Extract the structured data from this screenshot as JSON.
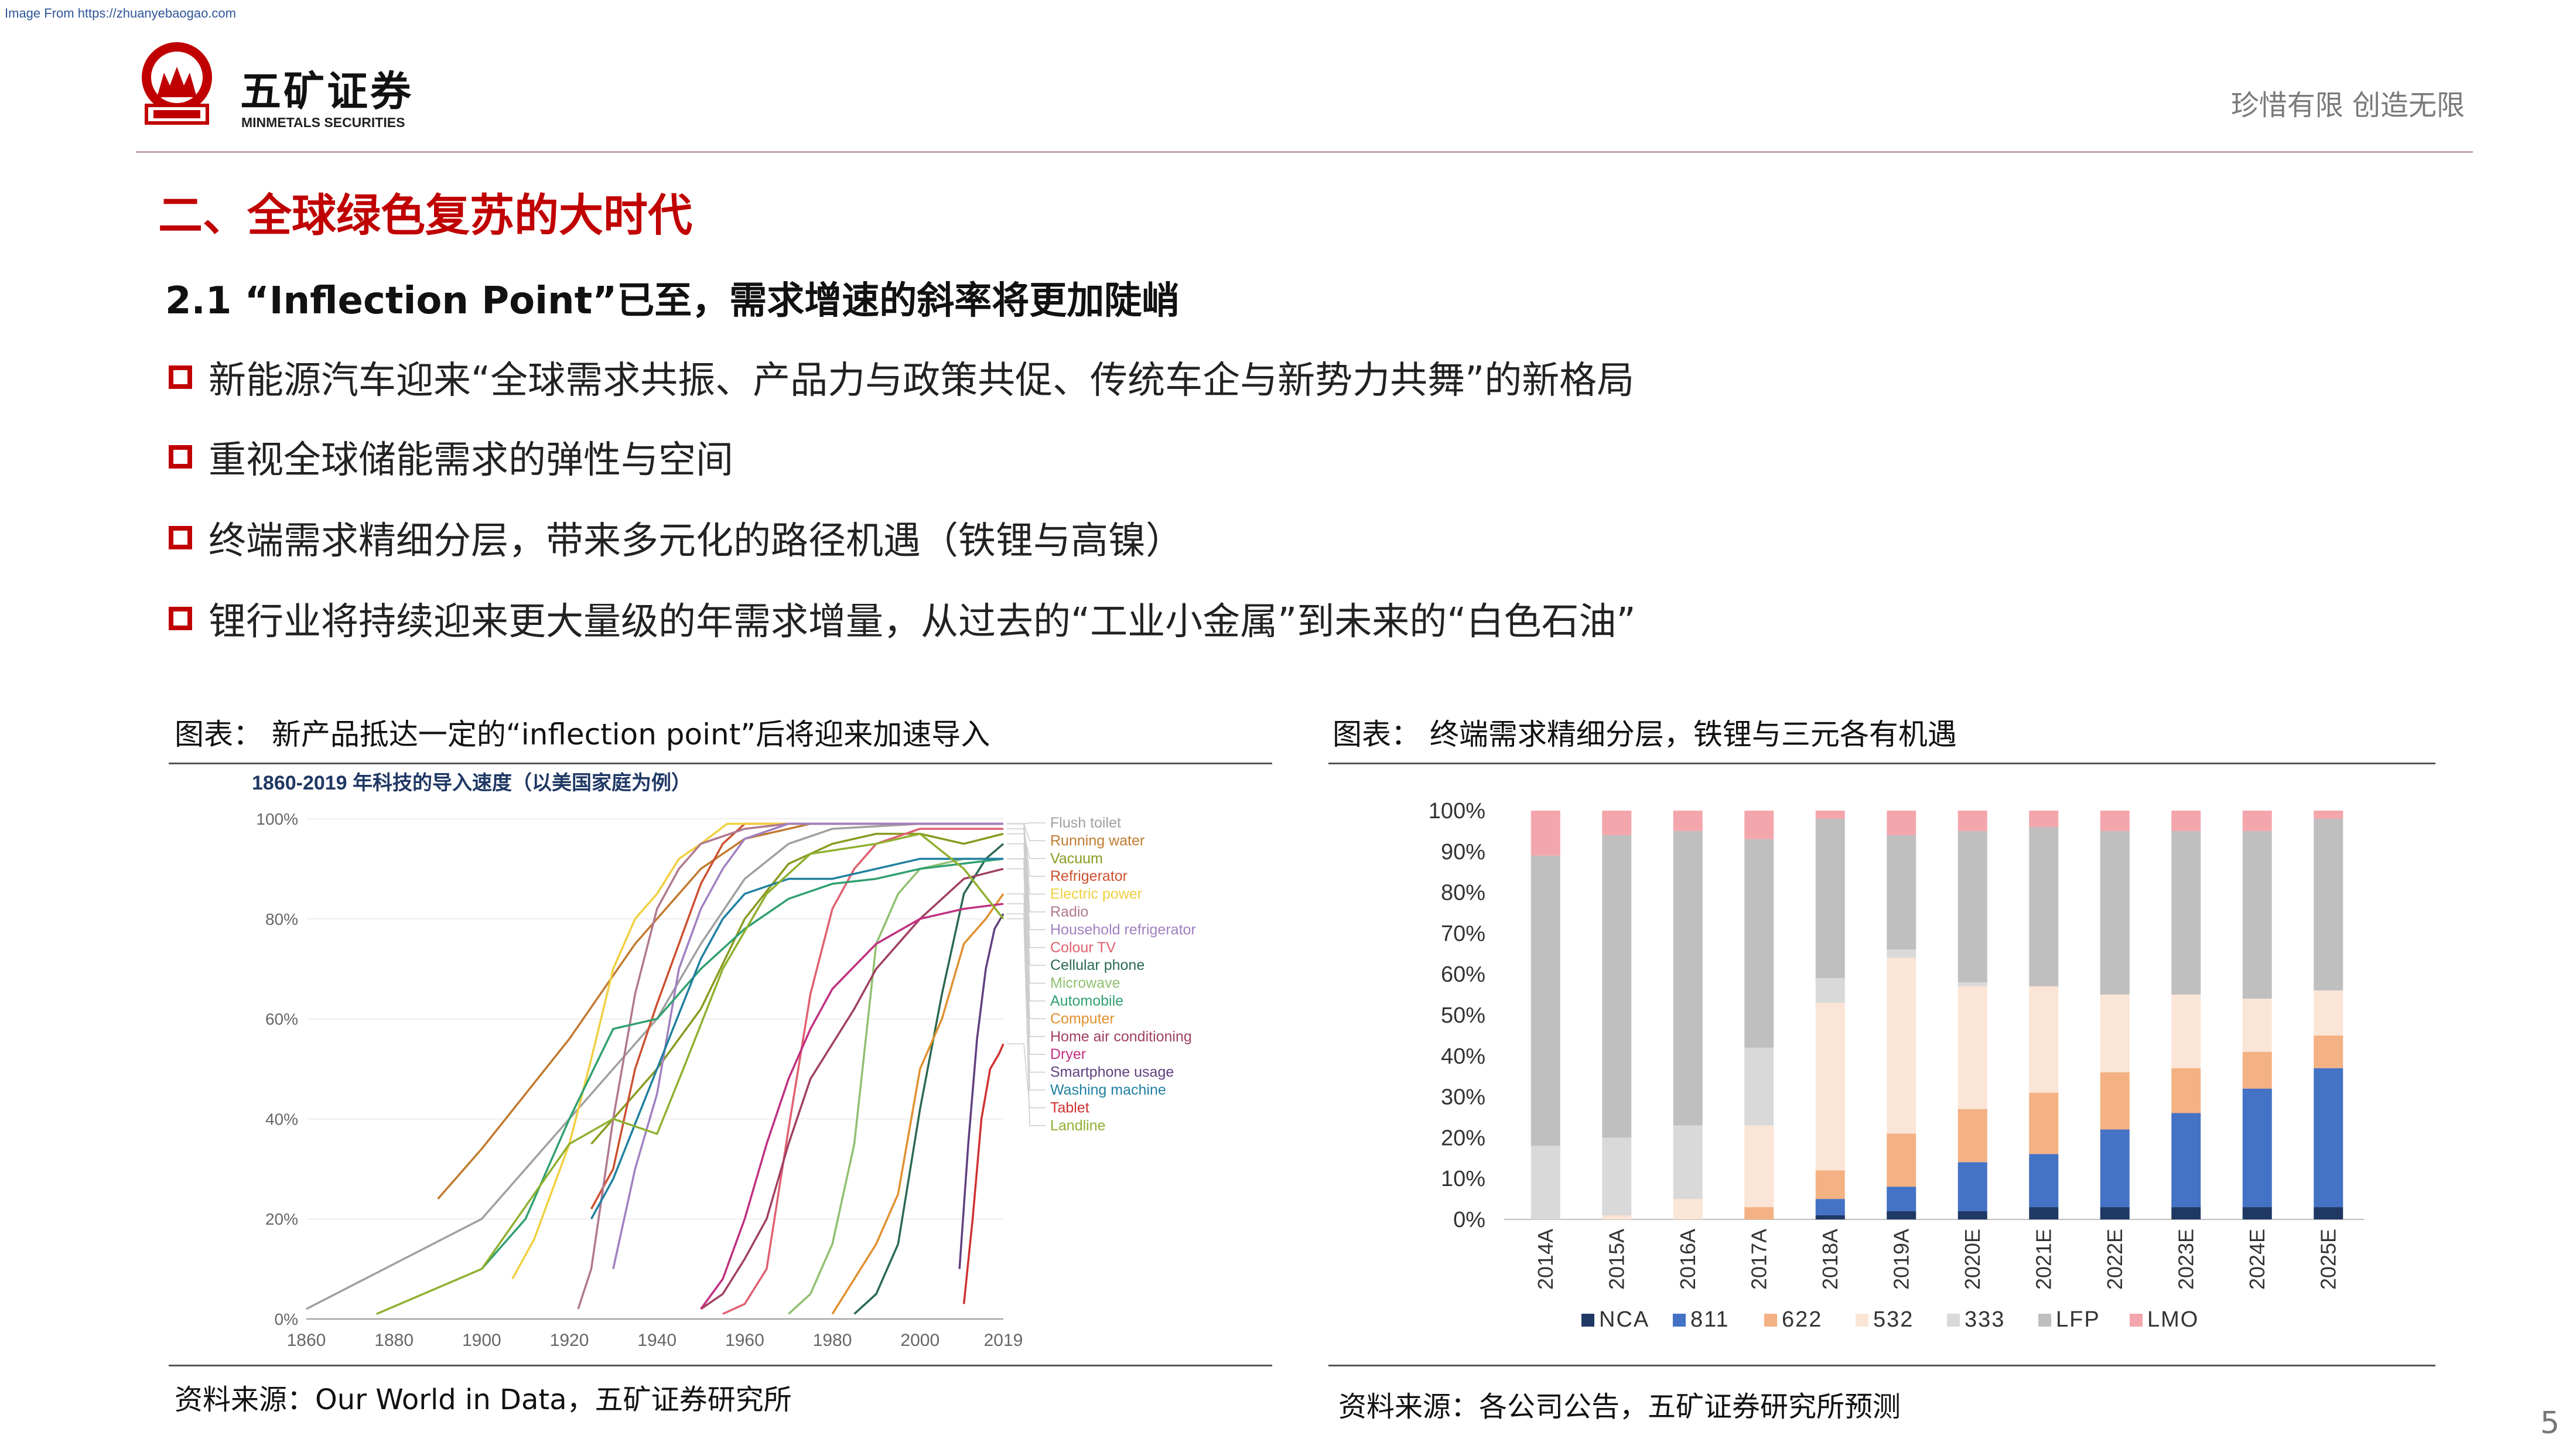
{
  "source_note": "Image From https://zhuanyebaogao.com",
  "logo": {
    "brand_cn": "五矿证券",
    "brand_en": "MINMETALS SECURITIES",
    "emblem_text": "MINMETALS"
  },
  "slogan": "珍惜有限  创造无限",
  "section_title": "二、全球绿色复苏的大时代",
  "sub_title": "2.1 “Inflection Point”已至，需求增速的斜率将更加陡峭",
  "bullets": [
    "新能源汽车迎来“全球需求共振、产品力与政策共促、传统车企与新势力共舞”的新格局",
    "重视全球储能需求的弹性与空间",
    "终端需求精细分层，带来多元化的路径机遇（铁锂与高镍）",
    "锂行业将持续迎来更大量级的年需求增量，从过去的“工业小金属”到未来的“白色石油”"
  ],
  "left_figure": {
    "caption": "图表： 新产品抵达一定的“inflection point”后将迎来加速导入",
    "source": "资料来源：Our World in Data，五矿证券研究所"
  },
  "right_figure": {
    "caption": "图表： 终端需求精细分层，铁锂与三元各有机遇",
    "source": "资料来源：各公司公告，五矿证券研究所预测"
  },
  "page_number": "5",
  "chart_data": [
    {
      "type": "line",
      "title": "1860-2019 年科技的导入速度（以美国家庭为例）",
      "xlabel": "",
      "ylabel": "",
      "xlim": [
        1860,
        2019
      ],
      "ylim": [
        0,
        100
      ],
      "x_ticks": [
        "1860",
        "1880",
        "1900",
        "1920",
        "1940",
        "1960",
        "1980",
        "2000",
        "2019"
      ],
      "y_ticks": [
        "0%",
        "20%",
        "40%",
        "60%",
        "80%",
        "100%"
      ],
      "legend_position": "right",
      "series": [
        {
          "name": "Flush toilet",
          "color": "#a0a0a0",
          "points": [
            [
              1860,
              2
            ],
            [
              1900,
              20
            ],
            [
              1920,
              40
            ],
            [
              1940,
              60
            ],
            [
              1950,
              75
            ],
            [
              1960,
              88
            ],
            [
              1970,
              95
            ],
            [
              1980,
              98
            ],
            [
              2000,
              99
            ],
            [
              2019,
              99
            ]
          ]
        },
        {
          "name": "Running water",
          "color": "#c27a30",
          "points": [
            [
              1890,
              24
            ],
            [
              1900,
              34
            ],
            [
              1920,
              56
            ],
            [
              1935,
              75
            ],
            [
              1950,
              90
            ],
            [
              1960,
              96
            ],
            [
              1975,
              99
            ],
            [
              1990,
              99
            ],
            [
              2019,
              99
            ]
          ]
        },
        {
          "name": "Vacuum",
          "color": "#8a9a20",
          "points": [
            [
              1925,
              35
            ],
            [
              1930,
              40
            ],
            [
              1940,
              50
            ],
            [
              1950,
              62
            ],
            [
              1960,
              80
            ],
            [
              1970,
              91
            ],
            [
              1980,
              95
            ],
            [
              1990,
              97
            ],
            [
              2000,
              97
            ],
            [
              2010,
              95
            ],
            [
              2019,
              97
            ]
          ]
        },
        {
          "name": "Refrigerator",
          "color": "#cc5030",
          "points": [
            [
              1925,
              22
            ],
            [
              1930,
              30
            ],
            [
              1935,
              50
            ],
            [
              1940,
              63
            ],
            [
              1945,
              75
            ],
            [
              1950,
              87
            ],
            [
              1955,
              95
            ],
            [
              1960,
              99
            ],
            [
              2019,
              99
            ]
          ]
        },
        {
          "name": "Electric power",
          "color": "#f0d040",
          "points": [
            [
              1907,
              8
            ],
            [
              1912,
              16
            ],
            [
              1920,
              35
            ],
            [
              1925,
              52
            ],
            [
              1930,
              70
            ],
            [
              1935,
              80
            ],
            [
              1940,
              85
            ],
            [
              1945,
              92
            ],
            [
              1950,
              95
            ],
            [
              1956,
              99
            ],
            [
              2019,
              99
            ]
          ]
        },
        {
          "name": "Radio",
          "color": "#b07890",
          "points": [
            [
              1922,
              2
            ],
            [
              1925,
              10
            ],
            [
              1930,
              40
            ],
            [
              1935,
              65
            ],
            [
              1940,
              82
            ],
            [
              1945,
              90
            ],
            [
              1950,
              95
            ],
            [
              1960,
              98
            ],
            [
              1970,
              99
            ],
            [
              2019,
              99
            ]
          ]
        },
        {
          "name": "Household refrigerator",
          "color": "#a080c0",
          "points": [
            [
              1930,
              10
            ],
            [
              1935,
              30
            ],
            [
              1940,
              45
            ],
            [
              1945,
              70
            ],
            [
              1950,
              82
            ],
            [
              1955,
              90
            ],
            [
              1960,
              96
            ],
            [
              1970,
              99
            ],
            [
              2019,
              99
            ]
          ]
        },
        {
          "name": "Colour TV",
          "color": "#e06070",
          "points": [
            [
              1955,
              1
            ],
            [
              1960,
              3
            ],
            [
              1965,
              10
            ],
            [
              1970,
              38
            ],
            [
              1975,
              65
            ],
            [
              1980,
              82
            ],
            [
              1985,
              90
            ],
            [
              1990,
              95
            ],
            [
              2000,
              98
            ],
            [
              2019,
              98
            ]
          ]
        },
        {
          "name": "Cellular phone",
          "color": "#2a6a50",
          "points": [
            [
              1985,
              1
            ],
            [
              1990,
              5
            ],
            [
              1995,
              15
            ],
            [
              2000,
              42
            ],
            [
              2005,
              65
            ],
            [
              2010,
              85
            ],
            [
              2015,
              92
            ],
            [
              2019,
              95
            ]
          ]
        },
        {
          "name": "Microwave",
          "color": "#90c070",
          "points": [
            [
              1970,
              1
            ],
            [
              1975,
              5
            ],
            [
              1980,
              15
            ],
            [
              1985,
              35
            ],
            [
              1990,
              75
            ],
            [
              1995,
              85
            ],
            [
              2000,
              90
            ],
            [
              2010,
              92
            ],
            [
              2019,
              92
            ]
          ]
        },
        {
          "name": "Automobile",
          "color": "#30a070",
          "points": [
            [
              1900,
              10
            ],
            [
              1910,
              20
            ],
            [
              1920,
              40
            ],
            [
              1930,
              58
            ],
            [
              1940,
              60
            ],
            [
              1950,
              70
            ],
            [
              1960,
              78
            ],
            [
              1970,
              84
            ],
            [
              1980,
              87
            ],
            [
              1990,
              88
            ],
            [
              2000,
              90
            ],
            [
              2019,
              92
            ]
          ]
        },
        {
          "name": "Computer",
          "color": "#e09030",
          "points": [
            [
              1980,
              1
            ],
            [
              1985,
              8
            ],
            [
              1990,
              15
            ],
            [
              1995,
              25
            ],
            [
              2000,
              50
            ],
            [
              2005,
              60
            ],
            [
              2010,
              75
            ],
            [
              2015,
              80
            ],
            [
              2019,
              85
            ]
          ]
        },
        {
          "name": "Home air conditioning",
          "color": "#a04060",
          "points": [
            [
              1950,
              2
            ],
            [
              1955,
              5
            ],
            [
              1960,
              12
            ],
            [
              1965,
              20
            ],
            [
              1970,
              35
            ],
            [
              1975,
              48
            ],
            [
              1980,
              55
            ],
            [
              1985,
              62
            ],
            [
              1990,
              70
            ],
            [
              2000,
              80
            ],
            [
              2010,
              88
            ],
            [
              2019,
              90
            ]
          ]
        },
        {
          "name": "Dryer",
          "color": "#c03080",
          "points": [
            [
              1950,
              2
            ],
            [
              1955,
              8
            ],
            [
              1960,
              20
            ],
            [
              1965,
              35
            ],
            [
              1970,
              48
            ],
            [
              1975,
              58
            ],
            [
              1980,
              66
            ],
            [
              1990,
              75
            ],
            [
              2000,
              80
            ],
            [
              2010,
              82
            ],
            [
              2019,
              83
            ]
          ]
        },
        {
          "name": "Smartphone usage",
          "color": "#604080",
          "points": [
            [
              2009,
              10
            ],
            [
              2011,
              35
            ],
            [
              2013,
              56
            ],
            [
              2015,
              70
            ],
            [
              2017,
              78
            ],
            [
              2019,
              81
            ]
          ]
        },
        {
          "name": "Washing machine",
          "color": "#2080a0",
          "points": [
            [
              1925,
              20
            ],
            [
              1930,
              28
            ],
            [
              1940,
              50
            ],
            [
              1950,
              72
            ],
            [
              1955,
              80
            ],
            [
              1960,
              85
            ],
            [
              1970,
              88
            ],
            [
              1980,
              88
            ],
            [
              1990,
              90
            ],
            [
              2000,
              92
            ],
            [
              2019,
              92
            ]
          ]
        },
        {
          "name": "Tablet",
          "color": "#d03030",
          "points": [
            [
              2010,
              3
            ],
            [
              2012,
              20
            ],
            [
              2014,
              40
            ],
            [
              2016,
              50
            ],
            [
              2018,
              53
            ],
            [
              2019,
              55
            ]
          ]
        },
        {
          "name": "Landline",
          "color": "#90b030",
          "points": [
            [
              1876,
              1
            ],
            [
              1900,
              10
            ],
            [
              1920,
              35
            ],
            [
              1930,
              40
            ],
            [
              1940,
              37
            ],
            [
              1946,
              50
            ],
            [
              1955,
              70
            ],
            [
              1965,
              85
            ],
            [
              1975,
              93
            ],
            [
              1990,
              95
            ],
            [
              2000,
              97
            ],
            [
              2010,
              90
            ],
            [
              2019,
              80
            ]
          ]
        }
      ]
    },
    {
      "type": "bar",
      "stacked": true,
      "title": "",
      "xlabel": "",
      "ylabel": "",
      "ylim": [
        0,
        100
      ],
      "y_ticks": [
        "0%",
        "10%",
        "20%",
        "30%",
        "40%",
        "50%",
        "60%",
        "70%",
        "80%",
        "90%",
        "100%"
      ],
      "legend_position": "bottom",
      "categories": [
        "2014A",
        "2015A",
        "2016A",
        "2017A",
        "2018A",
        "2019A",
        "2020E",
        "2021E",
        "2022E",
        "2023E",
        "2024E",
        "2025E"
      ],
      "series": [
        {
          "name": "NCA",
          "color": "#1f3864",
          "values": [
            0,
            0,
            0,
            0,
            1,
            2,
            2,
            3,
            3,
            3,
            3,
            3
          ]
        },
        {
          "name": "811",
          "color": "#4472c4",
          "values": [
            0,
            0,
            0,
            0,
            4,
            6,
            12,
            13,
            19,
            23,
            29,
            34
          ]
        },
        {
          "name": "622",
          "color": "#f4b183",
          "values": [
            0,
            0,
            0,
            3,
            7,
            13,
            13,
            15,
            14,
            11,
            9,
            8
          ]
        },
        {
          "name": "532",
          "color": "#fbe5d6",
          "values": [
            0,
            1,
            5,
            20,
            41,
            43,
            30,
            26,
            19,
            18,
            13,
            11
          ]
        },
        {
          "name": "333",
          "color": "#d9d9d9",
          "values": [
            18,
            19,
            18,
            19,
            6,
            2,
            1,
            0,
            0,
            0,
            0,
            0
          ]
        },
        {
          "name": "LFP",
          "color": "#bfbfbf",
          "values": [
            71,
            74,
            72,
            51,
            39,
            28,
            37,
            39,
            40,
            40,
            41,
            42
          ]
        },
        {
          "name": "LMO",
          "color": "#f4a6ad",
          "values": [
            11,
            6,
            5,
            7,
            2,
            6,
            5,
            4,
            5,
            5,
            5,
            2
          ]
        }
      ]
    }
  ]
}
